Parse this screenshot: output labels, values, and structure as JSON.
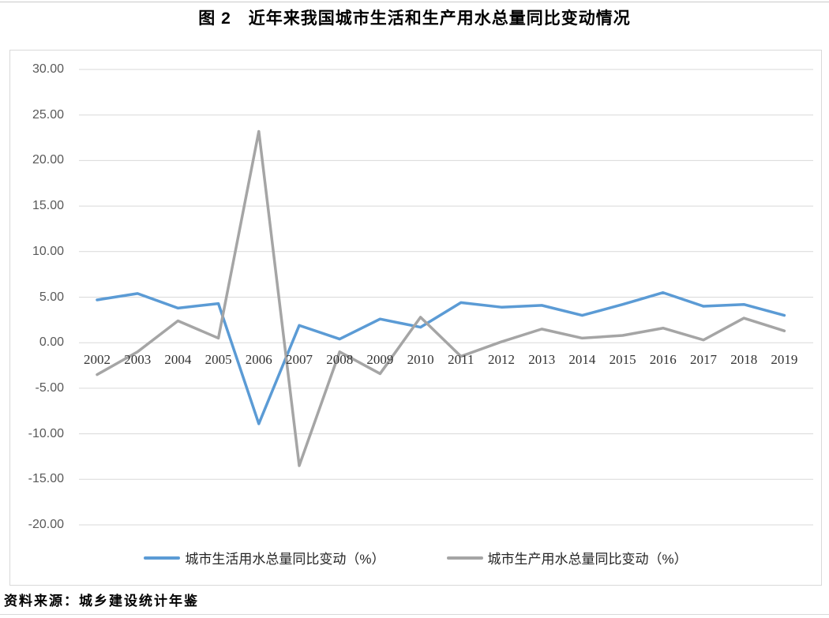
{
  "title": "图 2　近年来我国城市生活和生产用水总量同比变动情况",
  "source_note": "资料来源：城乡建设统计年鉴",
  "colors": {
    "series_domestic_blue": "#5B9BD5",
    "series_production_gray": "#A5A5A5",
    "gridline": "#D9D9D9",
    "axis_label": "#595959",
    "year_label": "#333333",
    "chart_border": "#D9D9D9"
  },
  "chart_data": {
    "type": "line",
    "title": "图 2　近年来我国城市生活和生产用水总量同比变动情况",
    "categories": [
      "2002",
      "2003",
      "2004",
      "2005",
      "2006",
      "2007",
      "2008",
      "2009",
      "2010",
      "2011",
      "2012",
      "2013",
      "2014",
      "2015",
      "2016",
      "2017",
      "2018",
      "2019"
    ],
    "series": [
      {
        "name": "城市生活用水总量同比变动（%）",
        "color": "#5B9BD5",
        "values": [
          4.7,
          5.4,
          3.8,
          4.3,
          -8.9,
          1.9,
          0.4,
          2.6,
          1.7,
          4.4,
          3.9,
          4.1,
          3.0,
          4.2,
          5.5,
          4.0,
          4.2,
          3.0
        ]
      },
      {
        "name": "城市生产用水总量同比变动（%）",
        "color": "#A5A5A5",
        "values": [
          -3.5,
          -1.0,
          2.4,
          0.5,
          23.2,
          -13.5,
          -1.0,
          -3.4,
          2.8,
          -1.5,
          0.1,
          1.5,
          0.5,
          0.8,
          1.6,
          0.3,
          2.7,
          1.3
        ]
      }
    ],
    "ylim": [
      -20,
      30
    ],
    "ytick_step": 5,
    "ytick_labels": [
      "30.00",
      "25.00",
      "20.00",
      "15.00",
      "10.00",
      "5.00",
      "0.00",
      "-5.00",
      "-10.00",
      "-15.00",
      "-20.00"
    ],
    "xlabel": "",
    "ylabel": "",
    "grid": "horizontal",
    "legend_position": "bottom-inside"
  }
}
